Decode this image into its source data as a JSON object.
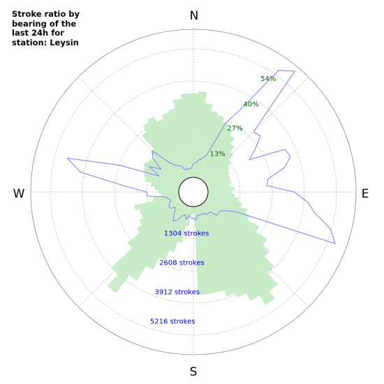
{
  "title_lines": [
    "Stroke ratio by",
    "bearing of the",
    "last 24h for",
    "station: Leysin"
  ],
  "compass": {
    "north": "N",
    "east": "E",
    "south": "S",
    "west": "W"
  },
  "colors": {
    "ratio_fill": "#c8ecc8",
    "count_line": "#8888ee",
    "percent_text": "#006400",
    "count_text": "#0000cc",
    "grid": "#aaaaaa"
  },
  "chart_data": {
    "type": "polar",
    "theta_unit": "degrees bearing",
    "bin_width_deg": 5,
    "ratio_axis": {
      "ticks": [
        13,
        27,
        40,
        54
      ],
      "tick_labels": [
        "13%",
        "27%",
        "40%",
        "54%"
      ],
      "max": 67
    },
    "count_axis": {
      "ticks": [
        1304,
        2608,
        3912,
        5216
      ],
      "tick_labels": [
        "1304 strokes",
        "2608 strokes",
        "3912 strokes",
        "5216 strokes"
      ],
      "max": 6520
    },
    "series": [
      {
        "kind": "ratio",
        "bearing": [
          0,
          5,
          10,
          15,
          20,
          25,
          30,
          35,
          40,
          45,
          50,
          55,
          60,
          65,
          70,
          75,
          80,
          85,
          90,
          95,
          100,
          105,
          110,
          115,
          120,
          125,
          130,
          135,
          140,
          145,
          150,
          155,
          160,
          165,
          170,
          175,
          180,
          185,
          190,
          195,
          200,
          205,
          210,
          215,
          220,
          225,
          230,
          235,
          240,
          245,
          250,
          255,
          260,
          265,
          270,
          275,
          280,
          285,
          290,
          295,
          300,
          305,
          310,
          315,
          320,
          325,
          330,
          335,
          340,
          345,
          350,
          355
        ],
        "values": [
          38,
          39,
          34,
          31,
          30,
          28,
          26,
          24,
          21,
          18,
          15,
          13,
          12,
          11,
          11,
          11,
          10,
          12,
          11,
          12,
          14,
          16,
          19,
          21,
          27,
          33,
          37,
          43,
          50,
          54,
          49,
          45,
          43,
          40,
          40,
          40,
          3,
          4,
          9,
          17,
          22,
          27,
          33,
          41,
          51,
          44,
          31,
          24,
          21,
          19,
          19,
          21,
          12,
          8,
          9,
          11,
          13,
          16,
          17,
          18,
          19,
          18,
          17,
          20,
          28,
          31,
          32,
          29,
          31,
          32,
          36,
          38
        ]
      },
      {
        "kind": "stroke_count",
        "bearing": [
          0,
          5,
          10,
          15,
          20,
          25,
          30,
          35,
          40,
          45,
          50,
          55,
          60,
          65,
          70,
          75,
          80,
          85,
          90,
          95,
          100,
          105,
          110,
          115,
          120,
          125,
          130,
          135,
          140,
          145,
          150,
          155,
          160,
          165,
          170,
          175,
          180,
          185,
          190,
          195,
          200,
          205,
          210,
          215,
          220,
          225,
          230,
          235,
          240,
          245,
          250,
          255,
          260,
          265,
          270,
          275,
          280,
          285,
          290,
          295,
          300,
          305,
          310,
          315,
          320,
          325,
          330,
          335,
          340,
          345,
          350,
          355
        ],
        "values": [
          600,
          650,
          800,
          900,
          1100,
          2700,
          3600,
          5900,
          6300,
          3100,
          3200,
          2700,
          2200,
          3800,
          3900,
          3500,
          2700,
          2600,
          3800,
          4400,
          4800,
          5600,
          6000,
          1400,
          1000,
          800,
          800,
          800,
          500,
          500,
          500,
          400,
          400,
          400,
          400,
          600,
          500,
          500,
          400,
          600,
          400,
          500,
          800,
          900,
          700,
          500,
          400,
          600,
          600,
          500,
          400,
          500,
          600,
          1400,
          1400,
          2400,
          4400,
          5100,
          2800,
          1000,
          1600,
          1100,
          1700,
          1900,
          1100,
          800,
          700,
          600,
          400,
          400,
          400,
          400
        ]
      }
    ]
  }
}
